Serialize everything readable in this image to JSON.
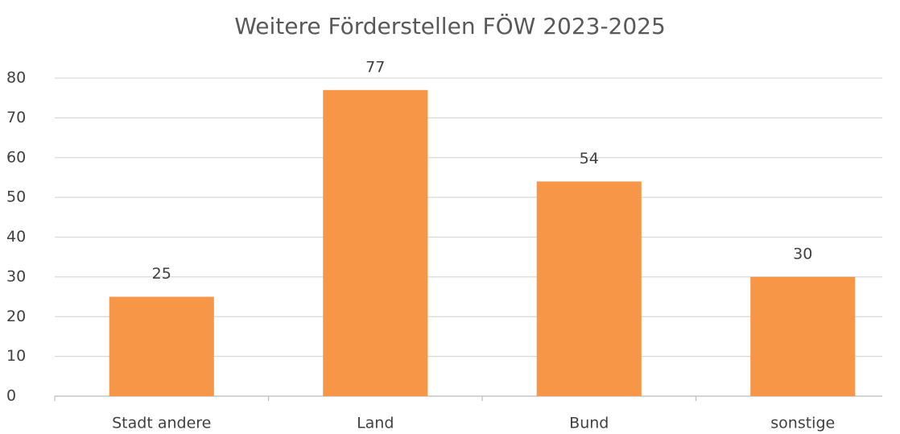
{
  "chart_data": {
    "type": "bar",
    "title": "Weitere Förderstellen FÖW 2023-2025",
    "categories": [
      "Stadt andere",
      "Land",
      "Bund",
      "sonstige"
    ],
    "values": [
      25,
      77,
      54,
      30
    ],
    "color": "#f79646",
    "ylim": [
      0,
      80
    ],
    "yticks": [
      0,
      10,
      20,
      30,
      40,
      50,
      60,
      70,
      80
    ],
    "grid": true
  }
}
